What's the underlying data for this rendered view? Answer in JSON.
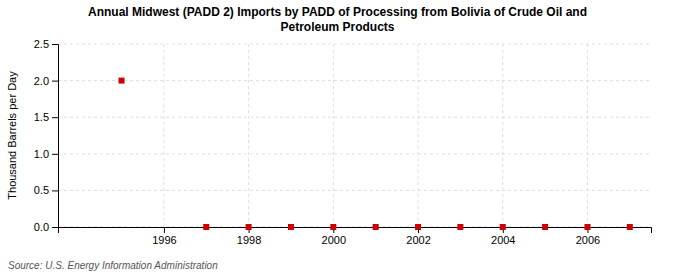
{
  "chart_data": {
    "type": "scatter",
    "title": "Annual Midwest (PADD 2) Imports by PADD of Processing from Bolivia of Crude Oil and\nPetroleum Products",
    "y_label": "Thousand Barrels per Day",
    "source": "Source: U.S. Energy Information Administration",
    "x": [
      1995,
      1997,
      1998,
      1999,
      2000,
      2001,
      2002,
      2003,
      2004,
      2005,
      2006,
      2007
    ],
    "values": [
      2.0,
      0.0,
      0.0,
      0.0,
      0.0,
      0.0,
      0.0,
      0.0,
      0.0,
      0.0,
      0.0,
      0.0
    ],
    "color": "#cc0000",
    "marker": "square",
    "xlim": [
      1993.5,
      2007.5
    ],
    "ylim": [
      0,
      2.5
    ],
    "xticks": [
      1996,
      1998,
      2000,
      2002,
      2004,
      2006
    ],
    "yticks": [
      {
        "value": 0,
        "label": "0.0"
      },
      0.5,
      {
        "value": 1,
        "label": "1.0"
      },
      1.5,
      {
        "value": 2,
        "label": "2.0"
      },
      2.5
    ],
    "grid": true
  }
}
